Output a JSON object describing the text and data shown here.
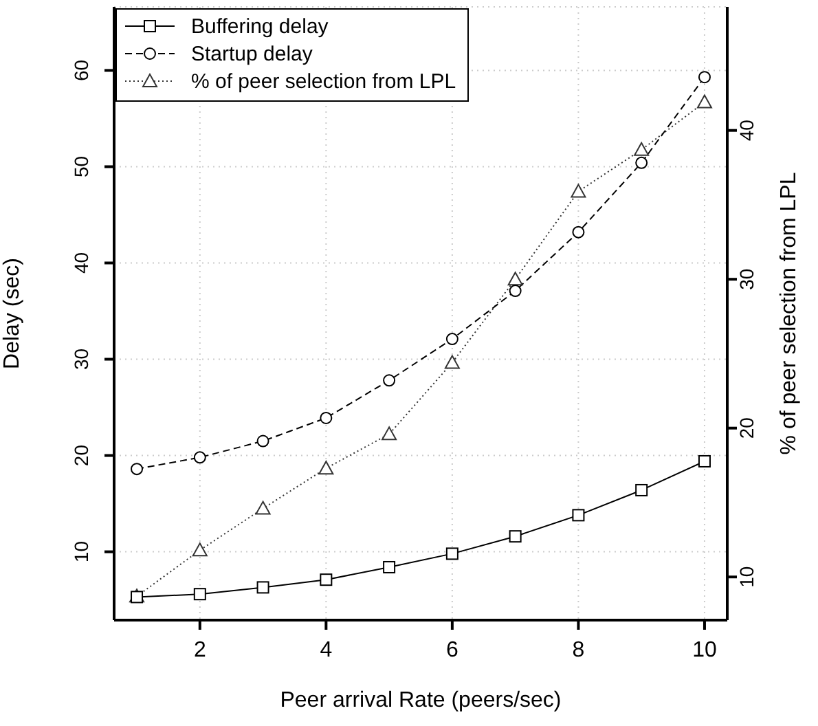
{
  "chart_data": {
    "type": "line",
    "xlabel": "Peer arrival Rate (peers/sec)",
    "ylabel": "Delay (sec)",
    "y2label": "% of peer selection from LPL",
    "x": [
      1,
      2,
      3,
      4,
      5,
      6,
      7,
      8,
      9,
      10
    ],
    "xlim": [
      0.64,
      10.36
    ],
    "xticks": [
      2,
      4,
      6,
      8,
      10
    ],
    "ylim": [
      2.9,
      66.6
    ],
    "yticks": [
      10,
      20,
      30,
      40,
      50,
      60
    ],
    "y2lim": [
      7.1,
      48.3
    ],
    "y2ticks": [
      10,
      20,
      30,
      40
    ],
    "grid": true,
    "legend": "top left",
    "series": [
      {
        "name": "Buffering delay",
        "color": "#000000",
        "marker": "square",
        "line_style": "solid",
        "values": [
          5.3,
          5.6,
          6.3,
          7.1,
          8.4,
          9.8,
          11.6,
          13.8,
          16.4,
          19.4
        ]
      },
      {
        "name": "Startup delay",
        "color": "#000000",
        "marker": "circle",
        "line_style": "dashed",
        "values": [
          18.6,
          19.8,
          21.5,
          23.9,
          27.8,
          32.1,
          37.1,
          43.2,
          50.4,
          59.3
        ]
      },
      {
        "name": "% of peer selection from LPL",
        "color": "#333333",
        "marker": "triangle",
        "line_style": "dotted",
        "axis": "y2",
        "values": [
          8.7,
          11.8,
          14.6,
          17.3,
          19.6,
          24.4,
          30.0,
          35.9,
          38.7,
          41.9
        ]
      }
    ]
  }
}
